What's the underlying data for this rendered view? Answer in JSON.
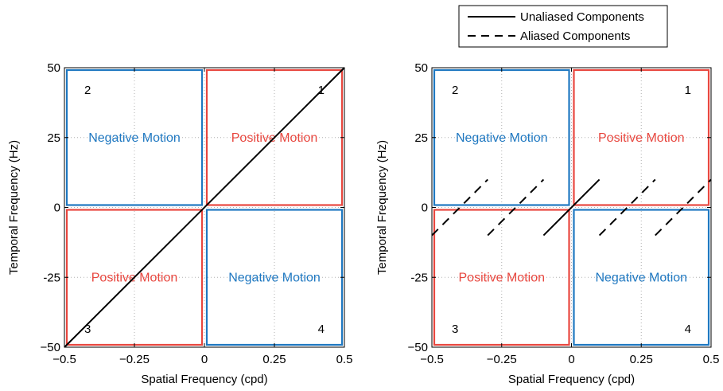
{
  "colors": {
    "positive": "#e8473f",
    "negative": "#1f78c1",
    "line": "#000000",
    "grid": "#b0b0b0"
  },
  "legend": {
    "solid_label": "Unaliased Components",
    "dashed_label": "Aliased Components",
    "placement": "top-right above right panel"
  },
  "chart_data": [
    {
      "type": "line",
      "xlabel": "Spatial Frequency (cpd)",
      "ylabel": "Temporal Frequency (Hz)",
      "xlim": [
        -0.5,
        0.5
      ],
      "ylim": [
        -50,
        50
      ],
      "xticks": [
        -0.5,
        -0.25,
        0,
        0.25,
        0.5
      ],
      "xtick_labels": [
        "−0.5",
        "−0.25",
        "0",
        "0.25",
        "0.5"
      ],
      "yticks": [
        50,
        25,
        0,
        -25,
        -50
      ],
      "ytick_labels": [
        "50",
        "25",
        "0",
        "-25",
        "−50"
      ],
      "grid": true,
      "quadrants": [
        {
          "num": "1",
          "motion": "Positive Motion",
          "sign": "positive",
          "x": [
            0,
            0.5
          ],
          "y": [
            0,
            50
          ],
          "num_corner": "top-right"
        },
        {
          "num": "2",
          "motion": "Negative Motion",
          "sign": "negative",
          "x": [
            -0.5,
            0
          ],
          "y": [
            0,
            50
          ],
          "num_corner": "top-left"
        },
        {
          "num": "3",
          "motion": "Positive Motion",
          "sign": "positive",
          "x": [
            -0.5,
            0
          ],
          "y": [
            -50,
            0
          ],
          "num_corner": "bottom-left"
        },
        {
          "num": "4",
          "motion": "Negative Motion",
          "sign": "negative",
          "x": [
            0,
            0.5
          ],
          "y": [
            -50,
            0
          ],
          "num_corner": "bottom-right"
        }
      ],
      "series": [
        {
          "style": "solid",
          "x": [
            -0.5,
            0.5
          ],
          "y": [
            -50,
            50
          ]
        }
      ]
    },
    {
      "type": "line",
      "xlabel": "Spatial Frequency (cpd)",
      "ylabel": "Temporal Frequency (Hz)",
      "xlim": [
        -0.5,
        0.5
      ],
      "ylim": [
        -50,
        50
      ],
      "xticks": [
        -0.5,
        -0.25,
        0,
        0.25,
        0.5
      ],
      "xtick_labels": [
        "−0.5",
        "−0.25",
        "0",
        "0.25",
        "0.5"
      ],
      "yticks": [
        50,
        25,
        0,
        -25,
        -50
      ],
      "ytick_labels": [
        "50",
        "25",
        "0",
        "-25",
        "−50"
      ],
      "grid": true,
      "quadrants": [
        {
          "num": "1",
          "motion": "Positive Motion",
          "sign": "positive",
          "x": [
            0,
            0.5
          ],
          "y": [
            0,
            50
          ],
          "num_corner": "top-right"
        },
        {
          "num": "2",
          "motion": "Negative Motion",
          "sign": "negative",
          "x": [
            -0.5,
            0
          ],
          "y": [
            0,
            50
          ],
          "num_corner": "top-left"
        },
        {
          "num": "3",
          "motion": "Positive Motion",
          "sign": "positive",
          "x": [
            -0.5,
            0
          ],
          "y": [
            -50,
            0
          ],
          "num_corner": "bottom-left"
        },
        {
          "num": "4",
          "motion": "Negative Motion",
          "sign": "negative",
          "x": [
            0,
            0.5
          ],
          "y": [
            -50,
            0
          ],
          "num_corner": "bottom-right"
        }
      ],
      "series": [
        {
          "style": "solid",
          "x": [
            -0.1,
            0.1
          ],
          "y": [
            -10,
            10
          ]
        },
        {
          "style": "dashed",
          "x": [
            -0.5,
            -0.3
          ],
          "y": [
            -10,
            10
          ]
        },
        {
          "style": "dashed",
          "x": [
            -0.3,
            -0.1
          ],
          "y": [
            -10,
            10
          ]
        },
        {
          "style": "dashed",
          "x": [
            0.1,
            0.3
          ],
          "y": [
            -10,
            10
          ]
        },
        {
          "style": "dashed",
          "x": [
            0.3,
            0.5
          ],
          "y": [
            -10,
            10
          ]
        }
      ]
    }
  ]
}
